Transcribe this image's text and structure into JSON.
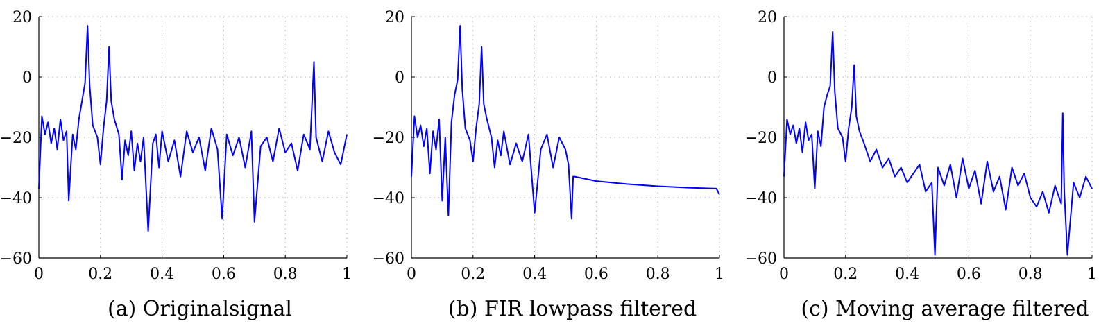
{
  "chart_data": [
    {
      "type": "line",
      "caption": "(a) Originalsignal",
      "xlim": [
        0,
        1
      ],
      "ylim": [
        -60,
        20
      ],
      "xticks": [
        "0",
        "0.2",
        "0.4",
        "0.6",
        "0.8",
        "1"
      ],
      "yticks": [
        "20",
        "0",
        "-20",
        "-40",
        "-60"
      ],
      "grid": true,
      "series_color": "#0000ff",
      "x": [
        0,
        0.01,
        0.02,
        0.03,
        0.04,
        0.05,
        0.06,
        0.07,
        0.08,
        0.09,
        0.097,
        0.11,
        0.12,
        0.13,
        0.14,
        0.15,
        0.158,
        0.165,
        0.175,
        0.19,
        0.2,
        0.21,
        0.22,
        0.228,
        0.235,
        0.245,
        0.26,
        0.27,
        0.28,
        0.29,
        0.3,
        0.31,
        0.32,
        0.33,
        0.34,
        0.355,
        0.37,
        0.38,
        0.39,
        0.4,
        0.42,
        0.44,
        0.46,
        0.48,
        0.5,
        0.52,
        0.54,
        0.56,
        0.58,
        0.595,
        0.61,
        0.63,
        0.65,
        0.67,
        0.69,
        0.7,
        0.72,
        0.74,
        0.76,
        0.78,
        0.8,
        0.82,
        0.84,
        0.86,
        0.88,
        0.893,
        0.9,
        0.92,
        0.94,
        0.96,
        0.98,
        1.0
      ],
      "values": [
        -37,
        -13,
        -19,
        -15,
        -22,
        -17,
        -24,
        -14,
        -21,
        -18,
        -41,
        -19,
        -24,
        -14,
        -8,
        -2,
        17,
        -3,
        -16,
        -20,
        -29,
        -17,
        -8,
        10,
        -8,
        -14,
        -19,
        -34,
        -21,
        -26,
        -18,
        -31,
        -22,
        -28,
        -20,
        -51,
        -22,
        -19,
        -30,
        -18,
        -28,
        -21,
        -33,
        -18,
        -25,
        -20,
        -31,
        -17,
        -24,
        -47,
        -19,
        -26,
        -20,
        -30,
        -18,
        -48,
        -23,
        -20,
        -28,
        -17,
        -25,
        -22,
        -31,
        -19,
        -24,
        5,
        -20,
        -28,
        -18,
        -25,
        -29,
        -19
      ]
    },
    {
      "type": "line",
      "caption": "(b) FIR lowpass filtered",
      "xlim": [
        0,
        1
      ],
      "ylim": [
        -60,
        20
      ],
      "xticks": [
        "0",
        "0.2",
        "0.4",
        "0.6",
        "0.8",
        "1"
      ],
      "yticks": [
        "20",
        "0",
        "-20",
        "-40",
        "-60"
      ],
      "grid": true,
      "series_color": "#0000ff",
      "x": [
        0,
        0.01,
        0.02,
        0.03,
        0.04,
        0.05,
        0.06,
        0.07,
        0.08,
        0.09,
        0.1,
        0.11,
        0.12,
        0.13,
        0.14,
        0.15,
        0.158,
        0.165,
        0.175,
        0.19,
        0.2,
        0.21,
        0.22,
        0.228,
        0.235,
        0.245,
        0.26,
        0.27,
        0.28,
        0.29,
        0.3,
        0.32,
        0.34,
        0.36,
        0.38,
        0.4,
        0.42,
        0.44,
        0.46,
        0.48,
        0.5,
        0.51,
        0.52,
        0.525,
        0.53,
        0.6,
        0.7,
        0.8,
        0.9,
        0.99,
        1.0
      ],
      "values": [
        -33,
        -13,
        -20,
        -16,
        -23,
        -17,
        -32,
        -18,
        -24,
        -14,
        -41,
        -20,
        -46,
        -15,
        -6,
        -1,
        17,
        -4,
        -17,
        -21,
        -28,
        -17,
        -9,
        10,
        -9,
        -14,
        -20,
        -30,
        -21,
        -26,
        -18,
        -29,
        -22,
        -28,
        -19,
        -45,
        -24,
        -19,
        -30,
        -20,
        -24,
        -29,
        -47,
        -33,
        -33,
        -34.5,
        -35.5,
        -36.2,
        -36.7,
        -37,
        -39
      ]
    },
    {
      "type": "line",
      "caption": "(c) Moving average filtered",
      "xlim": [
        0,
        1
      ],
      "ylim": [
        -60,
        20
      ],
      "xticks": [
        "0",
        "0.2",
        "0.4",
        "0.6",
        "0.8",
        "1"
      ],
      "yticks": [
        "20",
        "0",
        "-20",
        "-40",
        "-60"
      ],
      "grid": true,
      "series_color": "#0000ff",
      "x": [
        0,
        0.01,
        0.02,
        0.03,
        0.04,
        0.05,
        0.06,
        0.07,
        0.08,
        0.09,
        0.1,
        0.11,
        0.12,
        0.13,
        0.14,
        0.15,
        0.158,
        0.165,
        0.175,
        0.19,
        0.2,
        0.21,
        0.22,
        0.228,
        0.235,
        0.245,
        0.26,
        0.28,
        0.3,
        0.32,
        0.34,
        0.36,
        0.38,
        0.4,
        0.42,
        0.44,
        0.46,
        0.48,
        0.49,
        0.5,
        0.52,
        0.54,
        0.56,
        0.58,
        0.6,
        0.62,
        0.64,
        0.66,
        0.68,
        0.7,
        0.72,
        0.74,
        0.76,
        0.78,
        0.8,
        0.82,
        0.84,
        0.86,
        0.88,
        0.9,
        0.905,
        0.91,
        0.92,
        0.94,
        0.96,
        0.98,
        1.0
      ],
      "values": [
        -33,
        -14,
        -19,
        -16,
        -22,
        -17,
        -25,
        -15,
        -21,
        -19,
        -37,
        -18,
        -23,
        -10,
        -6,
        -3,
        15,
        -5,
        -17,
        -20,
        -28,
        -17,
        -10,
        4,
        -13,
        -18,
        -22,
        -28,
        -24,
        -30,
        -27,
        -33,
        -30,
        -35,
        -32,
        -29,
        -38,
        -35,
        -59,
        -30,
        -36,
        -29,
        -40,
        -27,
        -37,
        -31,
        -42,
        -28,
        -38,
        -33,
        -44,
        -30,
        -36,
        -32,
        -40,
        -43,
        -38,
        -45,
        -36,
        -42,
        -12,
        -38,
        -59,
        -35,
        -40,
        -33,
        -37
      ]
    }
  ]
}
